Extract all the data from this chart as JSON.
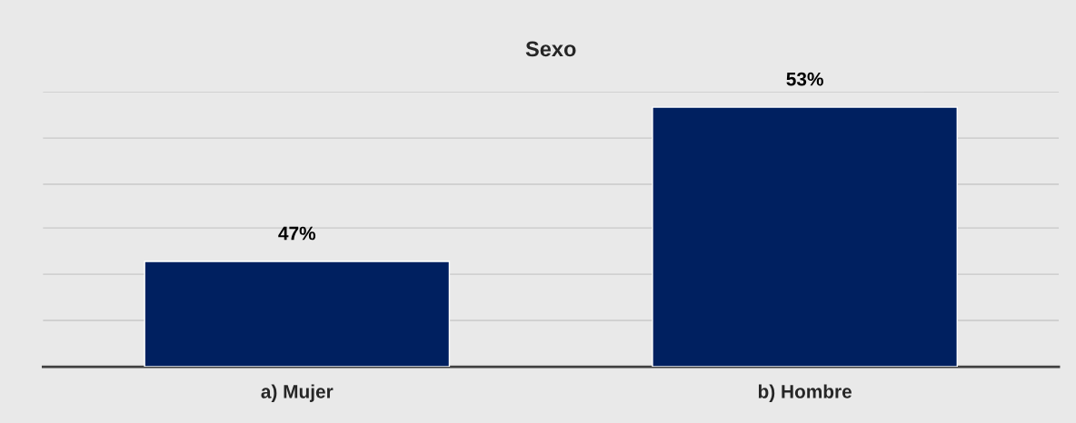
{
  "chart_data": {
    "type": "bar",
    "title": "Sexo",
    "categories": [
      "a) Mujer",
      "b) Hombre"
    ],
    "values": [
      47,
      53
    ],
    "color": "#002060",
    "value_labels": [
      "47%",
      "53%"
    ],
    "ylim": [
      42.9,
      53.6
    ],
    "yticks": [
      {
        "value": 44.7,
        "label": null
      },
      {
        "value": 46.5,
        "label": null
      },
      {
        "value": 48.3,
        "label": null
      },
      {
        "value": 50.0,
        "label": null
      },
      {
        "value": 51.8,
        "label": null
      },
      {
        "value": 53.6,
        "label": null
      }
    ],
    "grid": "y",
    "legend": false
  }
}
